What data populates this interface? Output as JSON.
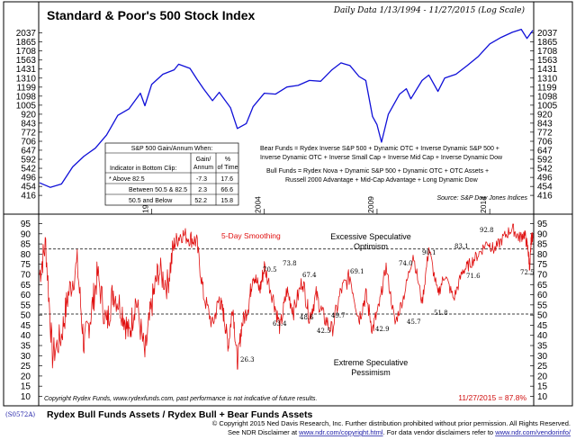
{
  "header": {
    "title": "Standard & Poor's 500 Stock Index",
    "date_range": "Daily Data 1/13/1994 - 11/27/2015 (Log Scale)"
  },
  "colors": {
    "price_line": "#1010d8",
    "sentiment_line": "#e01010",
    "smoothing_label": "#e01010",
    "reading_label": "#d01010"
  },
  "chart_data": [
    {
      "type": "line",
      "title": "Standard & Poor's 500 Stock Index",
      "scale": "log",
      "y_ticks": [
        416,
        454,
        496,
        542,
        592,
        647,
        706,
        772,
        843,
        920,
        1005,
        1098,
        1199,
        1310,
        1431,
        1563,
        1708,
        1865,
        2037
      ],
      "ylim": [
        395,
        2140
      ],
      "x_ticks": [
        "1999",
        "2004",
        "2009",
        "2014"
      ],
      "xlim": [
        1994.03,
        2015.91
      ],
      "series": [
        {
          "name": "S&P 500",
          "x": [
            1994.03,
            1994.5,
            1995.0,
            1995.5,
            1996.0,
            1996.5,
            1997.0,
            1997.5,
            1998.0,
            1998.5,
            1998.7,
            1999.0,
            1999.5,
            2000.0,
            2000.2,
            2000.7,
            2001.0,
            2001.3,
            2001.7,
            2002.0,
            2002.5,
            2002.8,
            2003.2,
            2003.5,
            2004.0,
            2004.5,
            2005.0,
            2005.5,
            2006.0,
            2006.5,
            2007.0,
            2007.4,
            2007.8,
            2008.2,
            2008.5,
            2008.8,
            2009.0,
            2009.2,
            2009.5,
            2010.0,
            2010.3,
            2010.5,
            2011.0,
            2011.3,
            2011.7,
            2012.0,
            2012.5,
            2013.0,
            2013.5,
            2014.0,
            2014.5,
            2015.0,
            2015.4,
            2015.65,
            2015.91
          ],
          "y": [
            470,
            450,
            465,
            550,
            610,
            660,
            750,
            910,
            970,
            1130,
            1000,
            1230,
            1360,
            1420,
            1500,
            1440,
            1300,
            1180,
            1050,
            1140,
            980,
            800,
            840,
            990,
            1130,
            1120,
            1200,
            1220,
            1280,
            1270,
            1420,
            1520,
            1480,
            1330,
            1280,
            900,
            830,
            700,
            920,
            1120,
            1180,
            1070,
            1280,
            1350,
            1150,
            1310,
            1360,
            1480,
            1620,
            1830,
            1950,
            2050,
            2110,
            1930,
            2090
          ]
        }
      ]
    },
    {
      "type": "line",
      "title": "Rydex Bull Funds Assets / Rydex Bull + Bear Funds Assets",
      "subtitle": "5-Day Smoothing",
      "y_ticks": [
        10,
        15,
        20,
        25,
        30,
        35,
        40,
        45,
        50,
        55,
        60,
        65,
        70,
        75,
        80,
        85,
        90,
        95
      ],
      "ylim": [
        8,
        97
      ],
      "xlim": [
        1994.03,
        2015.91
      ],
      "reference_lines": [
        {
          "value": 82.5
        },
        {
          "value": 50.5
        }
      ],
      "series": [
        {
          "name": "Bull / (Bull + Bear) %",
          "x": [
            1994.03,
            1994.3,
            1994.6,
            1995.0,
            1995.3,
            1995.7,
            1996.0,
            1996.3,
            1996.6,
            1997.0,
            1997.3,
            1997.7,
            1998.0,
            1998.3,
            1998.7,
            1999.0,
            1999.3,
            1999.7,
            2000.0,
            2000.3,
            2000.7,
            2001.0,
            2001.3,
            2001.7,
            2002.0,
            2002.2,
            2002.4,
            2002.6,
            2002.8,
            2003.0,
            2003.3,
            2003.5,
            2003.8,
            2004.0,
            2004.4,
            2004.7,
            2005.0,
            2005.3,
            2005.7,
            2006.0,
            2006.3,
            2006.6,
            2007.0,
            2007.4,
            2007.8,
            2008.2,
            2008.5,
            2008.8,
            2009.1,
            2009.4,
            2009.8,
            2010.2,
            2010.6,
            2011.0,
            2011.3,
            2011.7,
            2012.0,
            2012.4,
            2012.8,
            2013.1,
            2013.5,
            2013.9,
            2014.2,
            2014.6,
            2015.0,
            2015.3,
            2015.55,
            2015.7,
            2015.78,
            2015.84,
            2015.91
          ],
          "y": [
            70,
            85,
            30,
            40,
            60,
            75,
            35,
            50,
            70,
            45,
            62,
            52,
            40,
            58,
            30,
            55,
            72,
            65,
            85,
            90,
            88,
            86,
            60,
            45,
            58,
            50,
            35,
            55,
            26.3,
            45,
            55,
            70.5,
            62,
            73.8,
            58,
            43.4,
            62,
            52,
            67.4,
            48.6,
            60,
            49.7,
            42.5,
            62,
            69.1,
            48,
            60,
            42.9,
            55,
            74,
            45.7,
            60,
            80.1,
            56,
            83.1,
            60,
            70,
            58,
            71.6,
            75,
            80,
            86,
            82,
            88,
            92.8,
            88,
            90,
            82,
            72.5,
            87.8,
            87.8
          ]
        }
      ],
      "current_reading": "11/27/2015 = 87.8%"
    }
  ],
  "price_panel": {
    "bear_funds_label": "Bear Funds = Rydex Inverse S&P 500 + Dynamic OTC + Inverse Dynamic S&P 500 +",
    "bear_funds_line2": "Inverse Dynamic OTC + Inverse Small Cap + Inverse Mid Cap + Inverse Dynamic Dow",
    "bull_funds_label": "Bull Funds = Rydex Nova + Dynamic S&P 500 + Dynamic OTC + OTC Assets +",
    "bull_funds_line2": "Russell 2000 Advantage + Mid-Cap Advantage + Long Dynamic Dow",
    "source": "Source: S&P Dow Jones Indices"
  },
  "gain_table": {
    "title": "S&P 500 Gain/Annum When:",
    "col_indicator": "Indicator in Bottom Clip:",
    "col_gain_1": "Gain/",
    "col_gain_2": "Annum",
    "col_time_1": "%",
    "col_time_2": "of Time",
    "rows": [
      {
        "label": "* Above 82.5",
        "gain": "-7.3",
        "time": "17.6"
      },
      {
        "label": "Between 50.5 & 82.5",
        "gain": "2.3",
        "time": "66.6"
      },
      {
        "label": "50.5 and Below",
        "gain": "52.2",
        "time": "15.8"
      }
    ]
  },
  "sentiment_panel": {
    "smoothing": "5-Day Smoothing",
    "excessive_1": "Excessive Speculative",
    "excessive_2": "Optimism",
    "extreme_1": "Extreme Speculative",
    "extreme_2": "Pessimism",
    "disclaimer": "Copyright Rydex Funds, www.rydexfunds.com, past performance is not indicative of future results.",
    "labels": [
      "92.8",
      "90.1",
      "83.1",
      "71.6",
      "74.0",
      "72.5",
      "70.5",
      "73.8",
      "67.4",
      "69.1",
      "63.4",
      "48.6",
      "49.7",
      "42.5",
      "42.9",
      "45.7",
      "51.8",
      "26.3"
    ]
  },
  "footer": {
    "code": "(S0572A)",
    "title": "Rydex Bull Funds Assets / Rydex Bull + Bear Funds Assets",
    "copyright": "© Copyright 2015 Ned Davis Research, Inc.  Further distribution prohibited without prior permission.  All Rights Reserved.",
    "disclaimer_prefix": "See NDR Disclaimer at",
    "disclaimer_link_1": "www.ndr.com/copyright.html",
    "disclaimer_middle": ".  For data vendor disclaimers refer to",
    "disclaimer_link_2": "www.ndr.com/vendorinfo/"
  }
}
